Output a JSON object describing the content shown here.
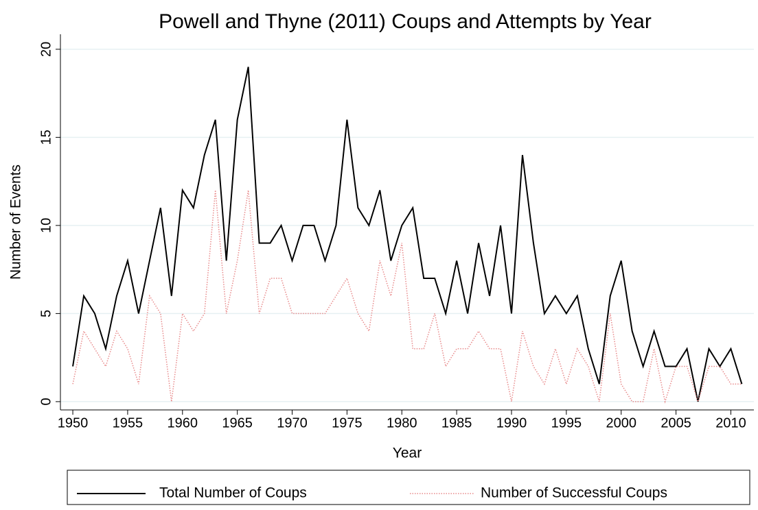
{
  "chart_data": {
    "type": "line",
    "title": "Powell and Thyne (2011) Coups and Attempts by Year",
    "x_label": "Year",
    "y_label": "Number of Events",
    "x": [
      1950,
      1951,
      1952,
      1953,
      1954,
      1955,
      1956,
      1957,
      1958,
      1959,
      1960,
      1961,
      1962,
      1963,
      1964,
      1965,
      1966,
      1967,
      1968,
      1969,
      1970,
      1971,
      1972,
      1973,
      1974,
      1975,
      1976,
      1977,
      1978,
      1979,
      1980,
      1981,
      1982,
      1983,
      1984,
      1985,
      1986,
      1987,
      1988,
      1989,
      1990,
      1991,
      1992,
      1993,
      1994,
      1995,
      1996,
      1997,
      1998,
      1999,
      2000,
      2001,
      2002,
      2003,
      2004,
      2005,
      2006,
      2007,
      2008,
      2009,
      2010,
      2011
    ],
    "series": [
      {
        "name": "Total Number of Coups",
        "color": "#000000",
        "dash": "solid",
        "values": [
          2,
          6,
          5,
          3,
          6,
          8,
          5,
          8,
          11,
          6,
          12,
          11,
          14,
          16,
          8,
          16,
          19,
          9,
          9,
          10,
          8,
          10,
          10,
          8,
          10,
          16,
          11,
          10,
          12,
          8,
          10,
          11,
          7,
          7,
          5,
          8,
          5,
          9,
          6,
          10,
          5,
          14,
          9,
          5,
          6,
          5,
          6,
          3,
          1,
          6,
          8,
          4,
          2,
          4,
          2,
          2,
          3,
          0,
          3,
          2,
          3,
          1
        ]
      },
      {
        "name": "Number of Successful Coups",
        "color": "#e8898a",
        "dash": "dotted",
        "values": [
          1,
          4,
          3,
          2,
          4,
          3,
          1,
          6,
          5,
          0,
          5,
          4,
          5,
          12,
          5,
          8,
          12,
          5,
          7,
          7,
          5,
          5,
          5,
          5,
          6,
          7,
          5,
          4,
          8,
          6,
          9,
          3,
          3,
          5,
          2,
          3,
          3,
          4,
          3,
          3,
          0,
          4,
          2,
          1,
          3,
          1,
          3,
          2,
          0,
          5,
          1,
          0,
          0,
          3,
          0,
          2,
          2,
          0,
          2,
          2,
          1,
          1
        ]
      }
    ],
    "xlim": [
      1948.87,
      2012.1
    ],
    "xticks": [
      1950,
      1955,
      1960,
      1965,
      1970,
      1975,
      1980,
      1985,
      1990,
      1995,
      2000,
      2005,
      2010
    ],
    "ylim": [
      -0.47,
      20.85
    ],
    "yticks": [
      0,
      5,
      10,
      15,
      20
    ],
    "grid": true,
    "legend": "bottom"
  }
}
